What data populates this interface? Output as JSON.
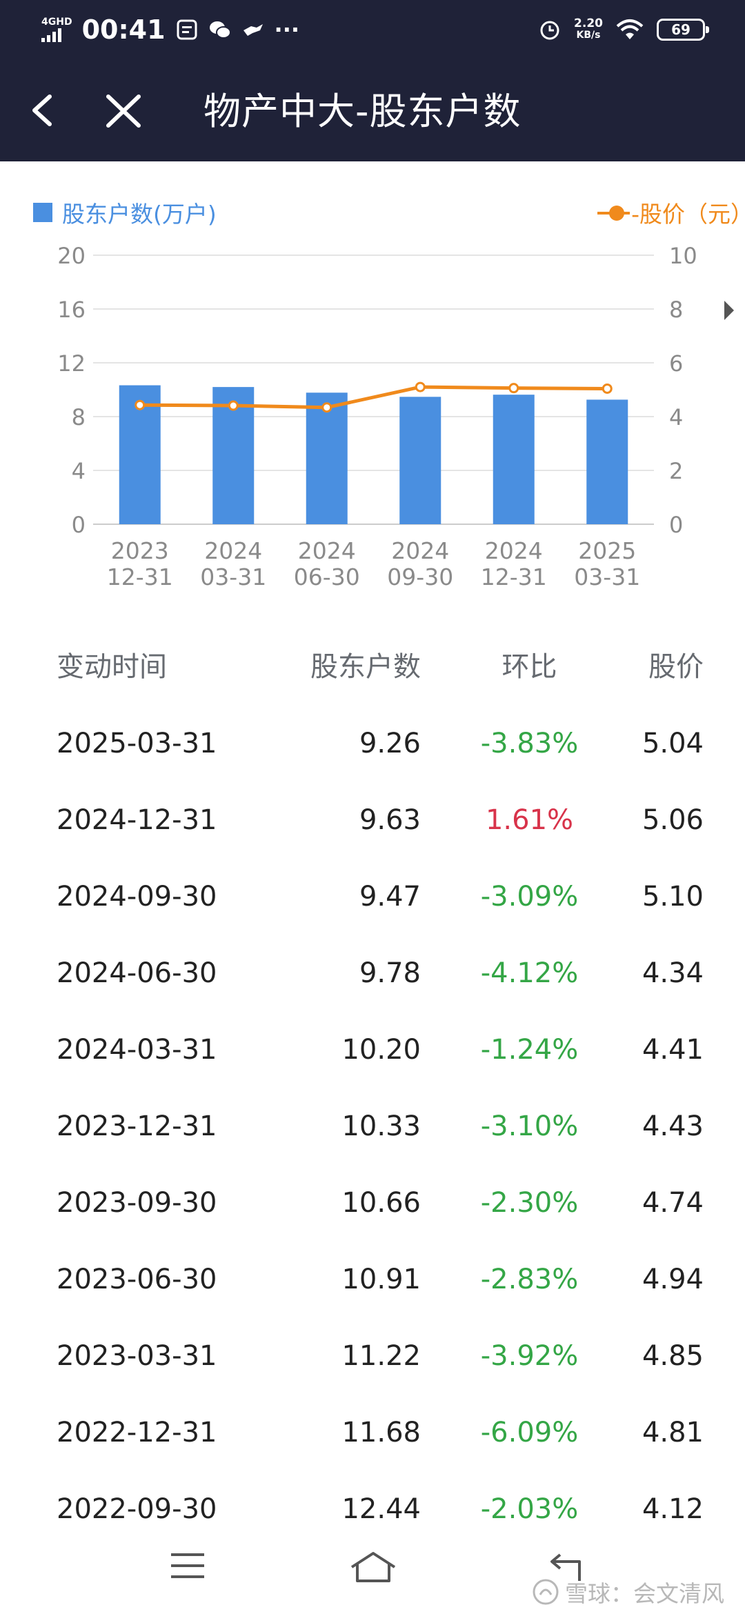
{
  "status_bar": {
    "network": "4GHD",
    "time": "00:41",
    "speed_value": "2.20",
    "speed_unit": "KB/s",
    "battery": "69",
    "more": "···"
  },
  "header": {
    "title": "物产中大-股东户数",
    "back_icon": "chevron-left-icon",
    "close_icon": "close-icon"
  },
  "legend": {
    "bars_label": "股东户数(万户)",
    "line_label": "-股价（元）"
  },
  "colors": {
    "header_bg": "#1f2238",
    "bar": "#4a8fe0",
    "line": "#f08a1c",
    "negative": "#34a646",
    "positive": "#d8334a"
  },
  "chart_data": {
    "type": "bar",
    "categories": [
      [
        "2023",
        "12-31"
      ],
      [
        "2024",
        "03-31"
      ],
      [
        "2024",
        "06-30"
      ],
      [
        "2024",
        "09-30"
      ],
      [
        "2024",
        "12-31"
      ],
      [
        "2025",
        "03-31"
      ]
    ],
    "series": [
      {
        "name": "股东户数(万户)",
        "type": "bar",
        "axis": "left",
        "values": [
          10.33,
          10.2,
          9.78,
          9.47,
          9.63,
          9.26
        ]
      },
      {
        "name": "股价（元）",
        "type": "line",
        "axis": "right",
        "values": [
          4.43,
          4.41,
          4.34,
          5.1,
          5.06,
          5.04
        ]
      }
    ],
    "y_left": {
      "min": 0,
      "max": 20,
      "ticks": [
        "0",
        "4",
        "8",
        "12",
        "16",
        "20"
      ]
    },
    "y_right": {
      "min": 0,
      "max": 10,
      "ticks": [
        "0",
        "2",
        "4",
        "6",
        "8",
        "10"
      ]
    },
    "grid": true,
    "legend_position": "top"
  },
  "table": {
    "headers": {
      "date": "变动时间",
      "count": "股东户数",
      "ratio": "环比",
      "price": "股价"
    },
    "rows": [
      {
        "date": "2025-03-31",
        "count": "9.26",
        "ratio": "-3.83%",
        "price": "5.04"
      },
      {
        "date": "2024-12-31",
        "count": "9.63",
        "ratio": "1.61%",
        "price": "5.06"
      },
      {
        "date": "2024-09-30",
        "count": "9.47",
        "ratio": "-3.09%",
        "price": "5.10"
      },
      {
        "date": "2024-06-30",
        "count": "9.78",
        "ratio": "-4.12%",
        "price": "4.34"
      },
      {
        "date": "2024-03-31",
        "count": "10.20",
        "ratio": "-1.24%",
        "price": "4.41"
      },
      {
        "date": "2023-12-31",
        "count": "10.33",
        "ratio": "-3.10%",
        "price": "4.43"
      },
      {
        "date": "2023-09-30",
        "count": "10.66",
        "ratio": "-2.30%",
        "price": "4.74"
      },
      {
        "date": "2023-06-30",
        "count": "10.91",
        "ratio": "-2.83%",
        "price": "4.94"
      },
      {
        "date": "2023-03-31",
        "count": "11.22",
        "ratio": "-3.92%",
        "price": "4.85"
      },
      {
        "date": "2022-12-31",
        "count": "11.68",
        "ratio": "-6.09%",
        "price": "4.81"
      },
      {
        "date": "2022-09-30",
        "count": "12.44",
        "ratio": "-2.03%",
        "price": "4.12"
      }
    ]
  },
  "watermark": "雪球：会文清风"
}
